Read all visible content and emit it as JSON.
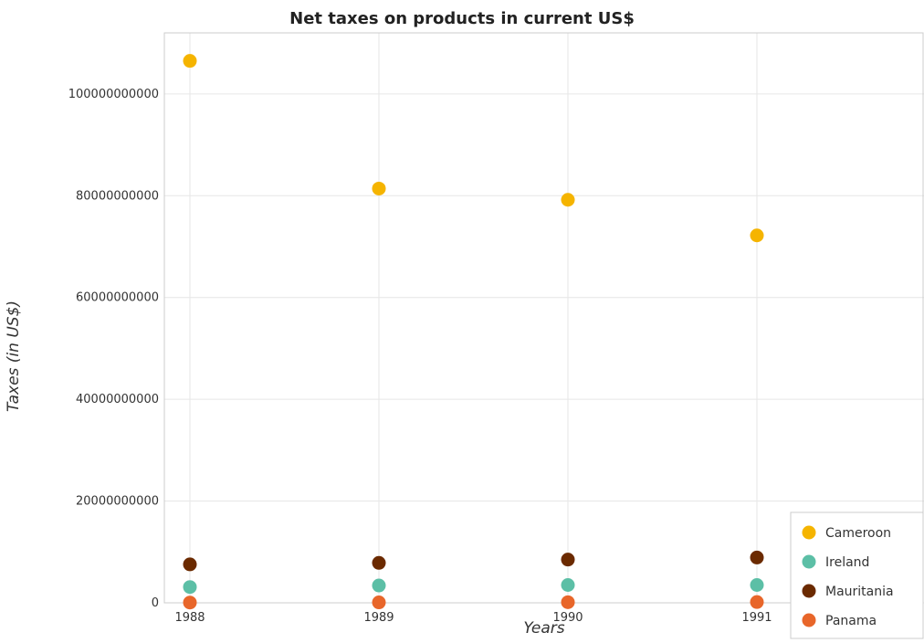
{
  "chart_data": {
    "type": "scatter",
    "title": "Net taxes on products in current US$",
    "xlabel": "Years",
    "ylabel": "Taxes (in US$)",
    "categories": [
      "1988",
      "1989",
      "1990",
      "1991"
    ],
    "ylim": [
      0,
      112000000000
    ],
    "yticks": [
      0,
      20000000000,
      40000000000,
      60000000000,
      80000000000,
      100000000000
    ],
    "ytick_labels": [
      "0",
      "20000000000",
      "40000000000",
      "60000000000",
      "80000000000",
      "100000000000"
    ],
    "grid": true,
    "legend_position": "bottom-right",
    "series": [
      {
        "name": "Cameroon",
        "color": "#f5b400",
        "values": [
          106500000000,
          81400000000,
          79200000000,
          72200000000
        ]
      },
      {
        "name": "Ireland",
        "color": "#5cbfa6",
        "values": [
          3100000000,
          3400000000,
          3500000000,
          3500000000
        ]
      },
      {
        "name": "Mauritania",
        "color": "#6b2a00",
        "values": [
          7550000000,
          7850000000,
          8500000000,
          8900000000
        ]
      },
      {
        "name": "Panama",
        "color": "#e8662a",
        "values": [
          50000000,
          80000000,
          120000000,
          150000000
        ]
      }
    ]
  }
}
